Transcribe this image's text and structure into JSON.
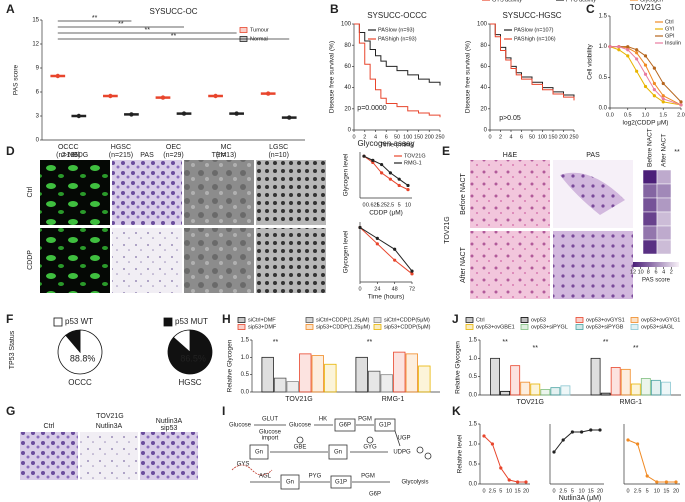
{
  "panel_labels": [
    "A",
    "B",
    "C",
    "D",
    "E",
    "F",
    "G",
    "H",
    "I",
    "J",
    "K"
  ],
  "texts": {
    "d_2nbdg": "2-NBDG",
    "d_pas": "PAS",
    "d_tem": "TEM",
    "d_ctrl": "Ctrl",
    "d_cddp": "CDDP",
    "e_he": "H&E",
    "e_pas": "PAS",
    "e_before": "Before NACT",
    "e_after": "After NACT",
    "e_cell": "TOV21G",
    "f_status": "TP53 Status",
    "g_title": "TOV21G",
    "g_ctrl": "Ctrl",
    "g_nut": "Nutlin3A",
    "g_nutsip1": "Nutlin3A",
    "g_nutsip2": "sip53",
    "i_glucose1": "Glucose",
    "i_glut": "GLUT",
    "i_import1": "Glucose",
    "i_import2": "import",
    "i_glucose2": "Glucose",
    "i_hk": "HK",
    "i_g6p": "G6P",
    "i_pgm": "PGM",
    "i_g1p": "G1P",
    "i_ugp": "UGP",
    "i_udpg": "UDPG",
    "i_gbe": "GBE",
    "i_gyg": "GYG",
    "i_gys": "GYS",
    "i_gn1": "Gn",
    "i_gn2": "Gn",
    "i_gn3": "Gn",
    "i_agl": "AGL",
    "i_pyg": "PYG",
    "i_g1p2": "G1P",
    "i_pgm2": "PGM",
    "i_g6p2": "G6P",
    "i_glycolysis": "Glycolysis",
    "k_xlabel": "Nutlin3A (μM)"
  },
  "chart_data": [
    {
      "type": "dot",
      "title": "SYSUCC-OC",
      "ylabel": "PAS score",
      "categories": [
        "OCCC",
        "HGSC",
        "OEC",
        "MC",
        "LGSC"
      ],
      "category_notes": [
        "(n=186)",
        "(n=215)",
        "(n=29)",
        "(n=13)",
        "(n=10)"
      ],
      "series": [
        {
          "name": "Tumour",
          "color": "#e8452c",
          "values": [
            8,
            5.5,
            5.3,
            5.5,
            5.8
          ]
        },
        {
          "name": "Normal",
          "color": "#222222",
          "values": [
            3,
            3.2,
            3.3,
            3.3,
            2.8
          ]
        }
      ],
      "ylim": [
        0,
        15
      ],
      "yticks": [
        0,
        3,
        6,
        9,
        12,
        15
      ],
      "annotations": [
        "**",
        "**",
        "**",
        "**"
      ]
    },
    {
      "type": "line",
      "step": true,
      "xscale": "broken",
      "title": "SYSUCC-OCCC",
      "ylabel": "Disease free survival (%)",
      "xlabel": "Time (mths)",
      "annotation": "p=0.0000",
      "x": [
        0,
        1,
        2,
        3,
        4,
        5,
        6,
        50,
        100,
        150,
        200,
        250
      ],
      "series": [
        {
          "name": "PASlow (n=93)",
          "color": "#222222",
          "values": [
            100,
            92,
            84,
            76,
            70,
            65,
            60,
            56,
            52,
            48,
            45,
            42
          ]
        },
        {
          "name": "PAShigh (n=93)",
          "color": "#e8452c",
          "values": [
            100,
            82,
            62,
            48,
            38,
            30,
            25,
            22,
            18,
            16,
            14,
            12
          ]
        }
      ],
      "xlim": [
        0,
        250
      ],
      "xticks": [
        0,
        2,
        4,
        6,
        50,
        100,
        150,
        200,
        250
      ],
      "ylim": [
        0,
        100
      ],
      "yticks": [
        0,
        20,
        40,
        60,
        80,
        100
      ]
    },
    {
      "type": "line",
      "step": true,
      "xscale": "broken",
      "title": "SYSUCC-HGSC",
      "ylabel": "Disease free survival (%)",
      "annotation": "p>0.05",
      "x": [
        0,
        1,
        2,
        3,
        4,
        5,
        6,
        50,
        100,
        150,
        200,
        250
      ],
      "series": [
        {
          "name": "PASlow (n=107)",
          "color": "#222222",
          "values": [
            100,
            90,
            78,
            68,
            60,
            54,
            50,
            45,
            40,
            36,
            33,
            30
          ]
        },
        {
          "name": "PAShigh (n=106)",
          "color": "#e8452c",
          "values": [
            100,
            88,
            75,
            66,
            58,
            52,
            48,
            43,
            38,
            34,
            31,
            28
          ]
        }
      ],
      "xlim": [
        0,
        250
      ],
      "xticks": [
        0,
        2,
        4,
        6,
        50,
        100,
        150,
        200,
        250
      ],
      "ylim": [
        0,
        100
      ],
      "yticks": [
        0,
        20,
        40,
        60,
        80,
        100
      ]
    },
    {
      "type": "line",
      "title": "TOV21G",
      "ylabel": "Cell visibility",
      "xlabel": "log2(CDDP μM)",
      "x": [
        0,
        0.25,
        0.5,
        0.75,
        1,
        1.25,
        1.5,
        2
      ],
      "series": [
        {
          "name": "Ctrl",
          "color": "#f08a24",
          "values": [
            1,
            1,
            0.98,
            0.9,
            0.7,
            0.4,
            0.2,
            0.05
          ]
        },
        {
          "name": "GYI",
          "color": "#e8b400",
          "values": [
            1,
            0.95,
            0.85,
            0.6,
            0.35,
            0.2,
            0.1,
            0.05
          ]
        },
        {
          "name": "GPI",
          "color": "#b5651d",
          "values": [
            1,
            1,
            1,
            0.95,
            0.85,
            0.65,
            0.4,
            0.1
          ]
        },
        {
          "name": "Insulin",
          "color": "#e87ca0",
          "values": [
            1,
            1,
            0.95,
            0.8,
            0.55,
            0.3,
            0.15,
            0.05
          ]
        }
      ],
      "xlim": [
        0,
        2
      ],
      "xticks": [
        {
          "value": 0,
          "label": "0.0"
        },
        0.5,
        {
          "value": 1,
          "label": "1.0"
        },
        1.5,
        {
          "value": 2,
          "label": "2.0"
        }
      ],
      "ylim": [
        0,
        1.5
      ],
      "yticks": [
        {
          "value": 0,
          "label": "0.0"
        },
        0.5,
        {
          "value": 1,
          "label": "1.0"
        },
        1.5
      ]
    },
    {
      "type": "line",
      "title": "Glycogen assay",
      "ylabel": "Glycogen level",
      "xlabel": "CDDP (μM)",
      "categories": [
        "0",
        "0.625",
        "1.25",
        "2.5",
        "5",
        "10"
      ],
      "series": [
        {
          "name": "TOV21G",
          "color": "#e8452c",
          "values": [
            1,
            0.85,
            0.6,
            0.45,
            0.3,
            0.2
          ]
        },
        {
          "name": "RMG-1",
          "color": "#222222",
          "values": [
            1,
            0.9,
            0.8,
            0.6,
            0.45,
            0.3
          ]
        }
      ],
      "ylim": [
        0,
        1.1
      ]
    },
    {
      "type": "line",
      "ylabel": "Glycogen level",
      "xlabel": "Time (hours)",
      "x": [
        0,
        24,
        48,
        72
      ],
      "series": [
        {
          "color": "#e8452c",
          "values": [
            1,
            0.7,
            0.4,
            0.15
          ]
        },
        {
          "color": "#222222",
          "values": [
            1,
            0.8,
            0.6,
            0.2
          ]
        }
      ],
      "xlim": [
        0,
        72
      ],
      "xticks": [
        0,
        24,
        48,
        72
      ],
      "ylim": [
        0,
        1.1
      ]
    },
    {
      "type": "heatmap",
      "series": [
        {
          "name": "Before NACT",
          "values": [
            12,
            8,
            9,
            10,
            7,
            11
          ]
        },
        {
          "name": "After NACT",
          "values": [
            4,
            6,
            5,
            3,
            4,
            3
          ]
        }
      ],
      "clim": [
        0,
        12
      ],
      "cticks": [
        12,
        10,
        8,
        6,
        4,
        2
      ],
      "clabel": "PAS score",
      "annotation": "**"
    },
    {
      "type": "pie",
      "legend": "p53 WT",
      "label": "OCCC",
      "values": [
        88.8,
        11.2
      ],
      "value_labels": [
        "88.8%",
        null
      ],
      "colors": [
        "#ffffff",
        "#111111"
      ]
    },
    {
      "type": "pie",
      "legend": "p53 MUT",
      "label": "HGSC",
      "values": [
        86.5,
        13.5
      ],
      "value_labels": [
        "86.5%",
        null
      ],
      "colors": [
        "#111111",
        "#ffffff"
      ]
    },
    {
      "type": "bar",
      "ylabel": "Relative Glycogen",
      "categories": [
        "TOV21G",
        "RMG-1"
      ],
      "series": [
        {
          "name": "siCtrl+DMF",
          "color": "#222222",
          "values": [
            1,
            1
          ]
        },
        {
          "name": "siCtrl+CDDP(1.25μM)",
          "color": "#555555",
          "values": [
            0.4,
            0.6
          ]
        },
        {
          "name": "siCtrl+CDDP(5μM)",
          "color": "#888888",
          "values": [
            0.3,
            0.5
          ]
        },
        {
          "name": "sip53+DMF",
          "color": "#e8452c",
          "values": [
            1.1,
            1.15
          ]
        },
        {
          "name": "sip53+CDDP(1.25μM)",
          "color": "#f08a24",
          "values": [
            1.05,
            1.1
          ]
        },
        {
          "name": "sip53+CDDP(5μM)",
          "color": "#e8b400",
          "values": [
            0.8,
            0.75
          ]
        }
      ],
      "ylim": [
        0,
        1.5
      ],
      "yticks": [
        {
          "value": 0,
          "label": "0.0"
        },
        0.5,
        {
          "value": 1,
          "label": "1.0"
        },
        1.5
      ],
      "annotations": [
        "**",
        "**"
      ]
    },
    {
      "type": "bar",
      "ylabel": "Relative Glycogen",
      "categories": [
        "TOV21G",
        "RMG-1"
      ],
      "series": [
        {
          "name": "Ctrl",
          "color": "#222222",
          "values": [
            1,
            1
          ]
        },
        {
          "name": "ovp53",
          "color": "#000000",
          "values": [
            0.1,
            0.05
          ]
        },
        {
          "name": "ovp53+ovGYS1",
          "color": "#e8452c",
          "values": [
            0.8,
            0.75
          ]
        },
        {
          "name": "ovp53+ovGYG1",
          "color": "#f08a24",
          "values": [
            0.35,
            0.7
          ]
        },
        {
          "name": "ovp53+ovGBE1",
          "color": "#e8b400",
          "values": [
            0.3,
            0.3
          ]
        },
        {
          "name": "ovp53+siPYGL",
          "color": "#7fbf7f",
          "values": [
            0.15,
            0.45
          ]
        },
        {
          "name": "ovp53+siPYGB",
          "color": "#4aa3a3",
          "values": [
            0.2,
            0.4
          ]
        },
        {
          "name": "ovp53+siAGL",
          "color": "#8ac6d1",
          "values": [
            0.25,
            0.35
          ]
        }
      ],
      "ylim": [
        0,
        1.5
      ],
      "yticks": [
        {
          "value": 0,
          "label": "0.0"
        },
        0.5,
        {
          "value": 1,
          "label": "1.0"
        },
        1.5
      ],
      "annotations": [
        "**",
        "**",
        "**",
        "**"
      ]
    },
    {
      "type": "line",
      "ylabel": "Relative level",
      "categories": [
        "0",
        "2.5",
        "5",
        "10",
        "15",
        "20"
      ],
      "series": [
        {
          "name": "GYS activity",
          "color": "#e8452c",
          "values": [
            1.2,
            1,
            0.4,
            0.1,
            0.05,
            0.05
          ]
        }
      ],
      "ylim": [
        0,
        1.5
      ],
      "yticks": [
        {
          "value": 0,
          "label": "0.0"
        },
        0.5,
        {
          "value": 1,
          "label": "1.0"
        },
        1.5
      ]
    },
    {
      "type": "line",
      "categories": [
        "0",
        "2.5",
        "5",
        "10",
        "15",
        "20"
      ],
      "series": [
        {
          "name": "PYG activity",
          "color": "#222222",
          "values": [
            0.8,
            1.1,
            1.3,
            1.3,
            1.35,
            1.35
          ]
        }
      ],
      "ylim": [
        0,
        1.5
      ]
    },
    {
      "type": "line",
      "categories": [
        "0",
        "2.5",
        "5",
        "10",
        "15",
        "20"
      ],
      "series": [
        {
          "name": "Glycogen",
          "color": "#f08a24",
          "values": [
            1.1,
            1,
            0.2,
            0.05,
            0.05,
            0.05
          ]
        }
      ],
      "ylim": [
        0,
        1.5
      ]
    }
  ]
}
